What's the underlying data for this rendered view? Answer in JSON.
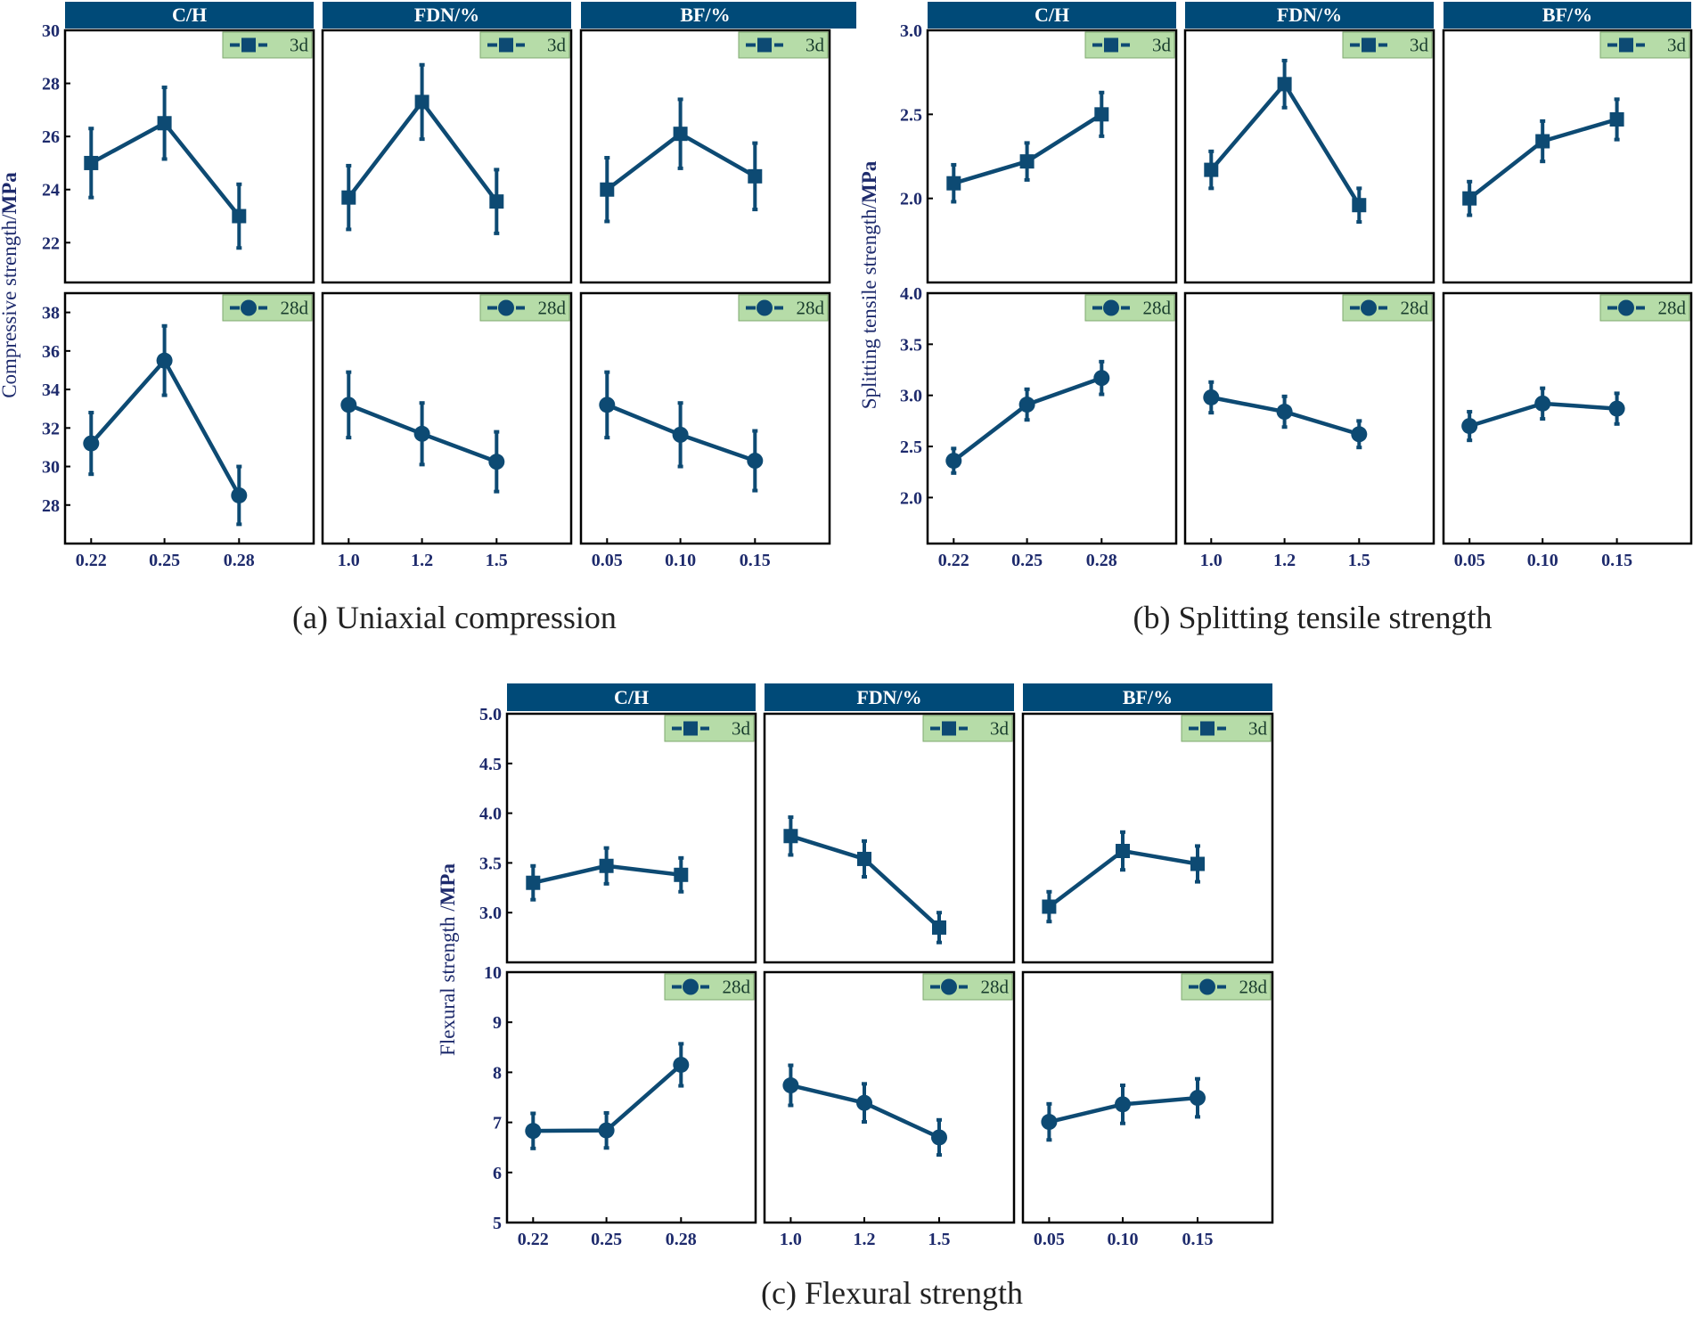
{
  "colors": {
    "line": "#0d4a73",
    "header_bg": "#004a78",
    "header_text": "#ffffff",
    "legend_bg": "#b6dca8",
    "axis_text": "#1d2a6c",
    "frame": "#000000"
  },
  "chart_data": [
    {
      "id": "a",
      "type": "line",
      "caption": "(a) Uniaxial compression",
      "ylabel_plain": "Compressive strength/",
      "ylabel_bold": "MPa",
      "columns": [
        {
          "title": "C/H",
          "x_ticks": [
            "0.22",
            "0.25",
            "0.28"
          ]
        },
        {
          "title": "FDN/%",
          "x_ticks": [
            "1.0",
            "1.2",
            "1.5"
          ]
        },
        {
          "title": "BF/%",
          "x_ticks": [
            "0.05",
            "0.10",
            "0.15"
          ]
        }
      ],
      "rows": [
        {
          "legend": "3d",
          "marker": "square",
          "ylim": [
            20.5,
            30
          ],
          "y_ticks": [
            22,
            24,
            26,
            28,
            30
          ],
          "series": [
            {
              "name": "C/H",
              "values": [
                25.0,
                26.5,
                23.0
              ],
              "errors": [
                1.3,
                1.35,
                1.2
              ]
            },
            {
              "name": "FDN/%",
              "values": [
                23.7,
                27.3,
                23.55
              ],
              "errors": [
                1.2,
                1.4,
                1.2
              ]
            },
            {
              "name": "BF/%",
              "values": [
                24.0,
                26.1,
                24.5
              ],
              "errors": [
                1.2,
                1.3,
                1.25
              ]
            }
          ]
        },
        {
          "legend": "28d",
          "marker": "circle",
          "ylim": [
            26,
            39
          ],
          "y_ticks": [
            28,
            30,
            32,
            34,
            36,
            38
          ],
          "series": [
            {
              "name": "C/H",
              "values": [
                31.2,
                35.5,
                28.5
              ],
              "errors": [
                1.6,
                1.8,
                1.5
              ]
            },
            {
              "name": "FDN/%",
              "values": [
                33.2,
                31.7,
                30.25
              ],
              "errors": [
                1.7,
                1.6,
                1.55
              ]
            },
            {
              "name": "BF/%",
              "values": [
                33.2,
                31.65,
                30.3
              ],
              "errors": [
                1.7,
                1.65,
                1.55
              ]
            }
          ]
        }
      ]
    },
    {
      "id": "b",
      "type": "line",
      "caption": "(b) Splitting tensile strength",
      "ylabel_plain": "Splitting tensile strength/",
      "ylabel_bold": "MPa",
      "columns": [
        {
          "title": "C/H",
          "x_ticks": [
            "0.22",
            "0.25",
            "0.28"
          ]
        },
        {
          "title": "FDN/%",
          "x_ticks": [
            "1.0",
            "1.2",
            "1.5"
          ]
        },
        {
          "title": "BF/%",
          "x_ticks": [
            "0.05",
            "0.10",
            "0.15"
          ]
        }
      ],
      "rows": [
        {
          "legend": "3d",
          "marker": "square",
          "ylim": [
            1.5,
            3.0
          ],
          "y_ticks": [
            "2.0",
            "2.5",
            "3.0"
          ],
          "series": [
            {
              "name": "C/H",
              "values": [
                2.09,
                2.22,
                2.5
              ],
              "errors": [
                0.11,
                0.11,
                0.13
              ]
            },
            {
              "name": "FDN/%",
              "values": [
                2.17,
                2.68,
                1.96
              ],
              "errors": [
                0.11,
                0.14,
                0.1
              ]
            },
            {
              "name": "BF/%",
              "values": [
                2.0,
                2.34,
                2.47
              ],
              "errors": [
                0.1,
                0.12,
                0.12
              ]
            }
          ]
        },
        {
          "legend": "28d",
          "marker": "circle",
          "ylim": [
            1.55,
            4.0
          ],
          "y_ticks": [
            "2.0",
            "2.5",
            "3.0",
            "3.5",
            "4.0"
          ],
          "series": [
            {
              "name": "C/H",
              "values": [
                2.36,
                2.91,
                3.17
              ],
              "errors": [
                0.12,
                0.15,
                0.16
              ]
            },
            {
              "name": "FDN/%",
              "values": [
                2.98,
                2.84,
                2.62
              ],
              "errors": [
                0.15,
                0.15,
                0.13
              ]
            },
            {
              "name": "BF/%",
              "values": [
                2.7,
                2.92,
                2.87
              ],
              "errors": [
                0.14,
                0.15,
                0.15
              ]
            }
          ]
        }
      ]
    },
    {
      "id": "c",
      "type": "line",
      "caption": "(c) Flexural strength",
      "ylabel_plain": "Flexural strength /",
      "ylabel_bold": "MPa",
      "columns": [
        {
          "title": "C/H",
          "x_ticks": [
            "0.22",
            "0.25",
            "0.28"
          ]
        },
        {
          "title": "FDN/%",
          "x_ticks": [
            "1.0",
            "1.2",
            "1.5"
          ]
        },
        {
          "title": "BF/%",
          "x_ticks": [
            "0.05",
            "0.10",
            "0.15"
          ]
        }
      ],
      "rows": [
        {
          "legend": "3d",
          "marker": "square",
          "ylim": [
            2.5,
            5.0
          ],
          "y_ticks": [
            "3.0",
            "3.5",
            "4.0",
            "4.5",
            "5.0"
          ],
          "series": [
            {
              "name": "C/H",
              "values": [
                3.3,
                3.47,
                3.38
              ],
              "errors": [
                0.17,
                0.18,
                0.17
              ]
            },
            {
              "name": "FDN/%",
              "values": [
                3.77,
                3.54,
                2.85
              ],
              "errors": [
                0.19,
                0.18,
                0.15
              ]
            },
            {
              "name": "BF/%",
              "values": [
                3.06,
                3.62,
                3.49
              ],
              "errors": [
                0.15,
                0.19,
                0.18
              ]
            }
          ]
        },
        {
          "legend": "28d",
          "marker": "circle",
          "ylim": [
            5,
            10
          ],
          "y_ticks": [
            "5",
            "6",
            "7",
            "8",
            "9",
            "10"
          ],
          "series": [
            {
              "name": "C/H",
              "values": [
                6.83,
                6.84,
                8.15
              ],
              "errors": [
                0.35,
                0.35,
                0.42
              ]
            },
            {
              "name": "FDN/%",
              "values": [
                7.74,
                7.39,
                6.7
              ],
              "errors": [
                0.4,
                0.38,
                0.35
              ]
            },
            {
              "name": "BF/%",
              "values": [
                7.01,
                7.36,
                7.49
              ],
              "errors": [
                0.36,
                0.38,
                0.38
              ]
            }
          ]
        }
      ]
    }
  ]
}
